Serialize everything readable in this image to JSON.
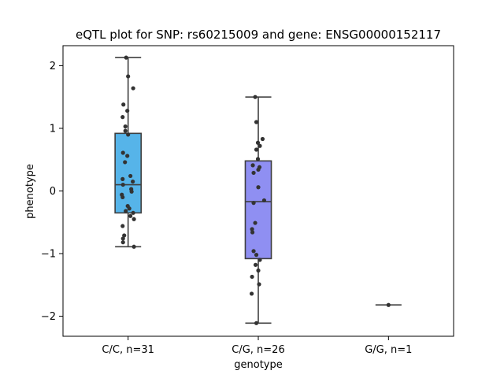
{
  "chart_data": {
    "type": "box",
    "title": "eQTL plot for SNP: rs60215009 and gene: ENSG00000152117",
    "xlabel": "genotype",
    "ylabel": "phenotype",
    "ylim": [
      -2.32,
      2.32
    ],
    "yticks": [
      -2,
      -1,
      0,
      1,
      2
    ],
    "ytick_labels": [
      "−2",
      "−1",
      "0",
      "1",
      "2"
    ],
    "grid": false,
    "categories": [
      "C/C, n=31",
      "C/G, n=26",
      "G/G, n=1"
    ],
    "boxes": [
      {
        "category": "C/C, n=31",
        "color": "#56b4e9",
        "whisker_low": -0.89,
        "q1": -0.35,
        "median": 0.1,
        "q3": 0.92,
        "whisker_high": 2.13,
        "points": [
          {
            "x": -0.05,
            "y": 2.13
          },
          {
            "x": 0.0,
            "y": 1.83
          },
          {
            "x": 0.13,
            "y": 1.64
          },
          {
            "x": -0.12,
            "y": 1.38
          },
          {
            "x": -0.02,
            "y": 1.28
          },
          {
            "x": -0.14,
            "y": 1.18
          },
          {
            "x": -0.07,
            "y": 1.03
          },
          {
            "x": -0.07,
            "y": 0.96
          },
          {
            "x": 0.0,
            "y": 0.9
          },
          {
            "x": -0.13,
            "y": 0.61
          },
          {
            "x": -0.02,
            "y": 0.56
          },
          {
            "x": -0.08,
            "y": 0.46
          },
          {
            "x": 0.06,
            "y": 0.24
          },
          {
            "x": -0.14,
            "y": 0.19
          },
          {
            "x": 0.12,
            "y": 0.15
          },
          {
            "x": -0.13,
            "y": 0.1
          },
          {
            "x": 0.08,
            "y": 0.03
          },
          {
            "x": 0.09,
            "y": -0.01
          },
          {
            "x": -0.16,
            "y": -0.06
          },
          {
            "x": -0.14,
            "y": -0.1
          },
          {
            "x": -0.01,
            "y": -0.24
          },
          {
            "x": 0.03,
            "y": -0.28
          },
          {
            "x": -0.06,
            "y": -0.32
          },
          {
            "x": 0.13,
            "y": -0.35
          },
          {
            "x": 0.06,
            "y": -0.4
          },
          {
            "x": 0.15,
            "y": -0.45
          },
          {
            "x": -0.14,
            "y": -0.56
          },
          {
            "x": -0.1,
            "y": -0.71
          },
          {
            "x": -0.13,
            "y": -0.76
          },
          {
            "x": -0.13,
            "y": -0.82
          },
          {
            "x": 0.15,
            "y": -0.89
          }
        ]
      },
      {
        "category": "C/G, n=26",
        "color": "#8f8ff2",
        "whisker_low": -2.11,
        "q1": -1.08,
        "median": -0.17,
        "q3": 0.48,
        "whisker_high": 1.5,
        "points": [
          {
            "x": -0.08,
            "y": 1.5
          },
          {
            "x": -0.05,
            "y": 1.1
          },
          {
            "x": 0.11,
            "y": 0.83
          },
          {
            "x": -0.01,
            "y": 0.77
          },
          {
            "x": 0.04,
            "y": 0.72
          },
          {
            "x": -0.05,
            "y": 0.66
          },
          {
            "x": -0.01,
            "y": 0.51
          },
          {
            "x": -0.14,
            "y": 0.41
          },
          {
            "x": 0.03,
            "y": 0.38
          },
          {
            "x": 0.0,
            "y": 0.34
          },
          {
            "x": -0.12,
            "y": 0.29
          },
          {
            "x": 0.0,
            "y": 0.06
          },
          {
            "x": -0.12,
            "y": -0.19
          },
          {
            "x": 0.15,
            "y": -0.15
          },
          {
            "x": -0.08,
            "y": -0.51
          },
          {
            "x": -0.16,
            "y": -0.61
          },
          {
            "x": -0.15,
            "y": -0.66
          },
          {
            "x": -0.12,
            "y": -0.96
          },
          {
            "x": -0.05,
            "y": -1.02
          },
          {
            "x": 0.04,
            "y": -1.1
          },
          {
            "x": -0.07,
            "y": -1.18
          },
          {
            "x": 0.0,
            "y": -1.27
          },
          {
            "x": -0.16,
            "y": -1.37
          },
          {
            "x": 0.02,
            "y": -1.49
          },
          {
            "x": -0.17,
            "y": -1.64
          },
          {
            "x": -0.05,
            "y": -2.11
          }
        ]
      },
      {
        "category": "G/G, n=1",
        "color": "#e9a6d6",
        "whisker_low": -1.82,
        "q1": -1.82,
        "median": -1.82,
        "q3": -1.82,
        "whisker_high": -1.82,
        "points": [
          {
            "x": 0.0,
            "y": -1.82
          }
        ]
      }
    ]
  }
}
